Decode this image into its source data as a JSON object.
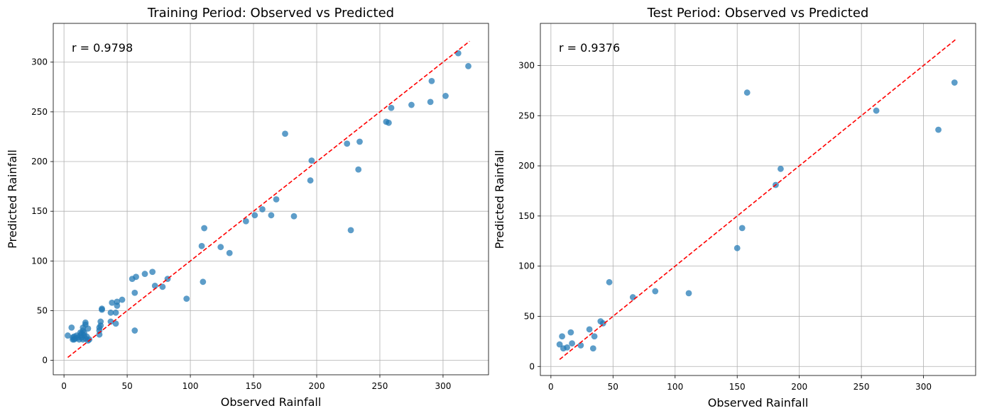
{
  "chart_data": [
    {
      "type": "scatter",
      "title": "Training Period: Observed vs Predicted",
      "xlabel": "Observed Rainfall",
      "ylabel": "Predicted Rainfall",
      "annotation": "r = 0.9798",
      "xlim": [
        -8.5,
        336
      ],
      "ylim": [
        -14.5,
        339
      ],
      "xticks": [
        0,
        50,
        100,
        150,
        200,
        250,
        300
      ],
      "yticks": [
        0,
        50,
        100,
        150,
        200,
        250,
        300
      ],
      "grid": true,
      "marker_color": "#1f77b4",
      "line_color": "#ff0000",
      "reference_line": {
        "x": [
          3,
          321
        ],
        "y": [
          3,
          321
        ]
      },
      "points": [
        [
          3,
          25
        ],
        [
          6,
          33
        ],
        [
          7,
          21
        ],
        [
          7,
          23
        ],
        [
          8,
          21
        ],
        [
          8,
          24
        ],
        [
          9,
          22
        ],
        [
          10,
          25
        ],
        [
          11,
          23
        ],
        [
          12,
          21
        ],
        [
          13,
          25
        ],
        [
          13,
          28
        ],
        [
          14,
          23
        ],
        [
          14,
          27
        ],
        [
          15,
          21
        ],
        [
          15,
          30
        ],
        [
          15,
          33
        ],
        [
          16,
          25
        ],
        [
          16,
          28
        ],
        [
          17,
          36
        ],
        [
          17,
          38
        ],
        [
          17,
          22
        ],
        [
          18,
          24
        ],
        [
          19,
          20
        ],
        [
          19,
          32
        ],
        [
          20,
          21
        ],
        [
          28,
          26
        ],
        [
          28,
          30
        ],
        [
          28,
          33
        ],
        [
          29,
          35
        ],
        [
          29,
          39
        ],
        [
          30,
          52
        ],
        [
          30,
          51
        ],
        [
          37,
          48
        ],
        [
          37,
          39
        ],
        [
          38,
          58
        ],
        [
          41,
          37
        ],
        [
          41,
          48
        ],
        [
          42,
          55
        ],
        [
          42,
          59
        ],
        [
          46,
          61
        ],
        [
          54,
          82
        ],
        [
          56,
          30
        ],
        [
          56,
          68
        ],
        [
          57,
          84
        ],
        [
          64,
          87
        ],
        [
          70,
          89
        ],
        [
          72,
          75
        ],
        [
          78,
          74
        ],
        [
          82,
          82
        ],
        [
          97,
          62
        ],
        [
          109,
          115
        ],
        [
          110,
          79
        ],
        [
          111,
          133
        ],
        [
          124,
          114
        ],
        [
          131,
          108
        ],
        [
          144,
          140
        ],
        [
          151,
          146
        ],
        [
          157,
          152
        ],
        [
          164,
          146
        ],
        [
          168,
          162
        ],
        [
          175,
          228
        ],
        [
          182,
          145
        ],
        [
          195,
          181
        ],
        [
          196,
          201
        ],
        [
          224,
          218
        ],
        [
          227,
          131
        ],
        [
          233,
          192
        ],
        [
          234,
          220
        ],
        [
          255,
          240
        ],
        [
          257,
          239
        ],
        [
          259,
          254
        ],
        [
          275,
          257
        ],
        [
          290,
          260
        ],
        [
          291,
          281
        ],
        [
          302,
          266
        ],
        [
          312,
          309
        ],
        [
          320,
          296
        ]
      ]
    },
    {
      "type": "scatter",
      "title": "Test Period: Observed vs Predicted",
      "xlabel": "Observed Rainfall",
      "ylabel": "Predicted Rainfall",
      "annotation": "r = 0.9376",
      "xlim": [
        -8.5,
        342
      ],
      "ylim": [
        -9,
        342
      ],
      "xticks": [
        0,
        50,
        100,
        150,
        200,
        250,
        300
      ],
      "yticks": [
        0,
        50,
        100,
        150,
        200,
        250,
        300
      ],
      "grid": true,
      "marker_color": "#1f77b4",
      "line_color": "#ff0000",
      "reference_line": {
        "x": [
          7,
          326
        ],
        "y": [
          7,
          326
        ]
      },
      "points": [
        [
          7,
          22
        ],
        [
          9,
          30
        ],
        [
          10,
          18
        ],
        [
          13,
          19
        ],
        [
          16,
          34
        ],
        [
          17,
          23
        ],
        [
          24,
          21
        ],
        [
          31,
          37
        ],
        [
          34,
          18
        ],
        [
          35,
          30
        ],
        [
          40,
          45
        ],
        [
          42,
          43
        ],
        [
          47,
          84
        ],
        [
          66,
          69
        ],
        [
          84,
          75
        ],
        [
          111,
          73
        ],
        [
          150,
          118
        ],
        [
          154,
          138
        ],
        [
          158,
          273
        ],
        [
          181,
          181
        ],
        [
          185,
          197
        ],
        [
          262,
          255
        ],
        [
          312,
          236
        ],
        [
          325,
          283
        ]
      ]
    }
  ]
}
